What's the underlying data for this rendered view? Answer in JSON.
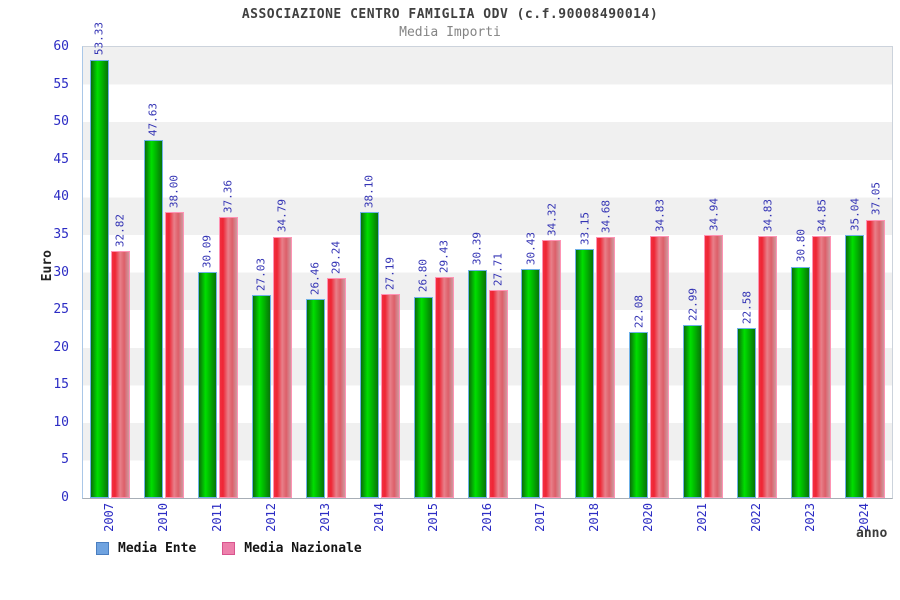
{
  "header": {
    "title": "ASSOCIAZIONE CENTRO FAMIGLIA ODV (c.f.90008490014)",
    "subtitle": "Media Importi"
  },
  "chart_data": {
    "type": "bar",
    "title": "ASSOCIAZIONE CENTRO FAMIGLIA ODV (c.f.90008490014)",
    "subtitle": "Media Importi",
    "xlabel": "anno",
    "ylabel": "Euro",
    "ylim": [
      0,
      60
    ],
    "ytick_step": 5,
    "grid": "alternating-horizontal-bands",
    "legend_position": "bottom-left",
    "categories": [
      "2007",
      "2010",
      "2011",
      "2012",
      "2013",
      "2014",
      "2015",
      "2016",
      "2017",
      "2018",
      "2020",
      "2021",
      "2022",
      "2023",
      "2024"
    ],
    "series": [
      {
        "name": "Media Ente",
        "values": [
          53.33,
          47.63,
          30.09,
          27.03,
          26.46,
          38.1,
          26.8,
          30.39,
          30.43,
          33.15,
          22.08,
          22.99,
          22.58,
          30.8,
          35.04
        ],
        "bar_style": "green-gradient",
        "legend_fill": "#6fa3e0",
        "legend_border": "#4a7ec0"
      },
      {
        "name": "Media Nazionale",
        "values": [
          32.82,
          38.0,
          37.36,
          34.79,
          29.24,
          27.19,
          29.43,
          27.71,
          34.32,
          34.68,
          34.83,
          34.94,
          34.83,
          34.85,
          37.05
        ],
        "bar_style": "red-gradient",
        "legend_fill": "#ed80ab",
        "legend_border": "#d8548e"
      }
    ],
    "draw_height_overrides": [
      {
        "series": 0,
        "index": 0,
        "units": 58.33
      }
    ],
    "value_label_color": "#3333b4",
    "axis_text_color": "#2c2cc4",
    "band_colors": [
      "#f0f0f0",
      "#ffffff"
    ]
  }
}
